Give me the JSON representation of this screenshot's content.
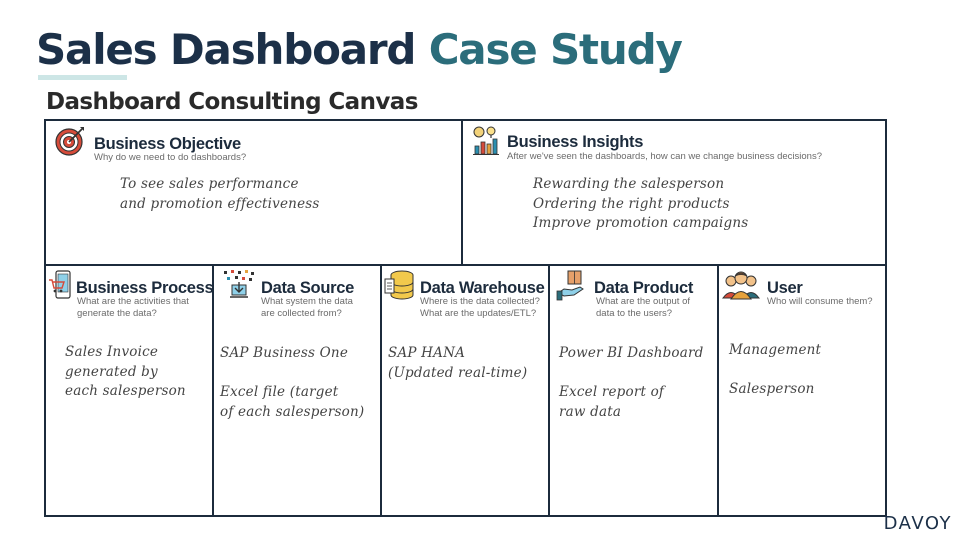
{
  "header": {
    "title_part1": "Sales Dashboard",
    "title_part2": "Case Study",
    "subtitle": "Dashboard Consulting Canvas"
  },
  "colors": {
    "dark": "#1c3048",
    "teal": "#2b6d7b",
    "accent": "#cde6e6",
    "border": "#1c2b3c"
  },
  "cells": {
    "business_objective": {
      "icon": "target-icon",
      "title": "Business Objective",
      "question": "Why do we need to do dashboards?",
      "answer": "To see sales performance\nand promotion effectiveness"
    },
    "business_insights": {
      "icon": "insights-icon",
      "title": "Business Insights",
      "question": "After we've seen the dashboards, how can we change business decisions?",
      "answer": "Rewarding the salesperson\nOrdering the right products\nImprove promotion campaigns"
    },
    "business_process": {
      "icon": "mobile-cart-icon",
      "title": "Business Process",
      "question": "What are the activities that\ngenerate the data?",
      "answer": "Sales Invoice\ngenerated by\neach salesperson"
    },
    "data_source": {
      "icon": "data-download-icon",
      "title": "Data Source",
      "question": "What system the data\nare collected from?",
      "answer": "SAP Business One\n\nExcel file (target\nof each salesperson)"
    },
    "data_warehouse": {
      "icon": "database-icon",
      "title": "Data Warehouse",
      "question": "Where is the data collected?\nWhat are the updates/ETL?",
      "answer": "SAP HANA\n(Updated real-time)"
    },
    "data_product": {
      "icon": "hand-box-icon",
      "title": "Data Product",
      "question": "What are the output of\ndata to the users?",
      "answer": "Power BI Dashboard\n\nExcel report of\nraw data"
    },
    "user": {
      "icon": "users-icon",
      "title": "User",
      "question": "Who will consume them?",
      "answer": "Management\n\nSalesperson"
    }
  },
  "brand": {
    "logo_text": "DAVOY"
  }
}
